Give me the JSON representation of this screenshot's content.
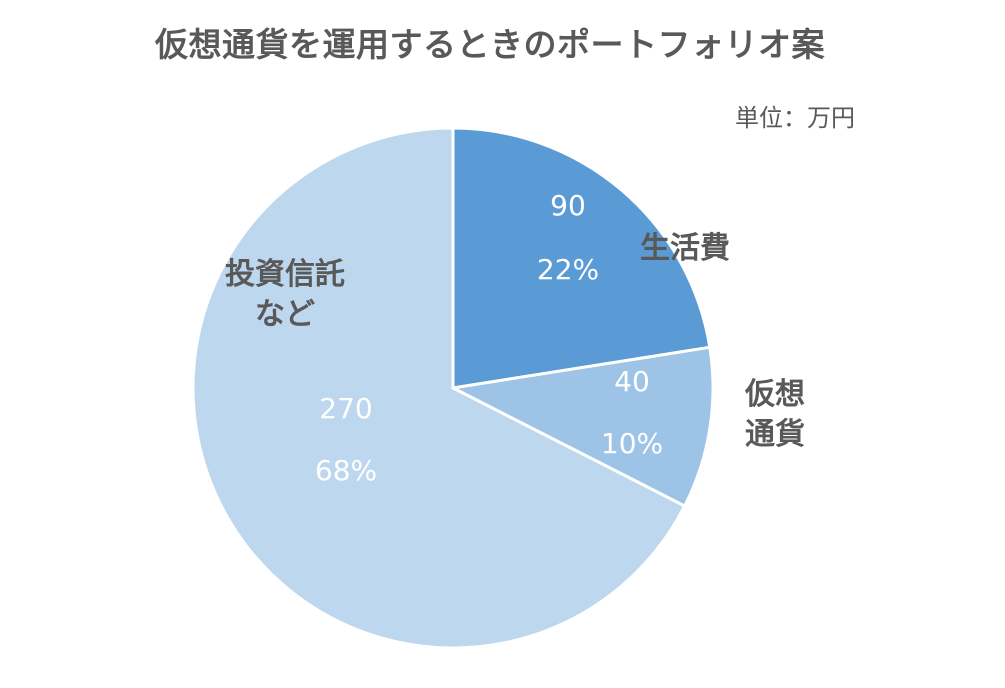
{
  "chart_data": {
    "type": "pie",
    "title": "仮想通貨を運用するときのポートフォリオ案",
    "unit_label": "単位：万円",
    "slices": [
      {
        "label_lines": [
          "生活費"
        ],
        "value": 90,
        "percent": "22%",
        "color": "#5B9BD5"
      },
      {
        "label_lines": [
          "仮想",
          "通貨"
        ],
        "value": 40,
        "percent": "10%",
        "color": "#9DC3E6"
      },
      {
        "label_lines": [
          "投資信託",
          "など"
        ],
        "value": 270,
        "percent": "68%",
        "color": "#BDD7EE"
      }
    ],
    "start_angle_deg": 0,
    "direction": "clockwise",
    "legend": "none"
  }
}
